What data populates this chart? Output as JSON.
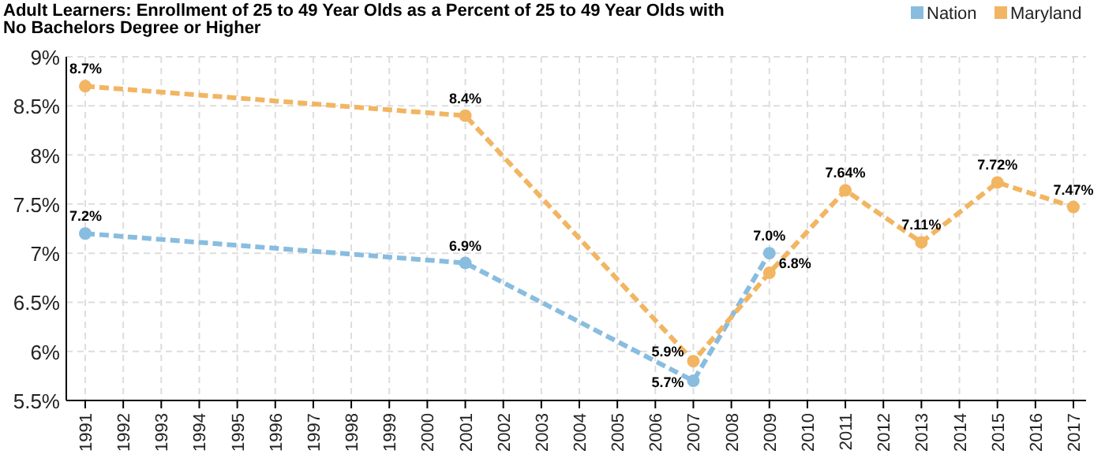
{
  "chart_data": {
    "type": "line",
    "title": "Adult Learners: Enrollment of 25 to 49 Year Olds as a Percent of 25 to 49 Year Olds with\nNo Bachelors Degree or Higher",
    "categories": [
      "1991",
      "1992",
      "1993",
      "1994",
      "1995",
      "1996",
      "1997",
      "1998",
      "1999",
      "2000",
      "2001",
      "2002",
      "2003",
      "2004",
      "2005",
      "2006",
      "2007",
      "2008",
      "2009",
      "2010",
      "2011",
      "2012",
      "2013",
      "2014",
      "2015",
      "2016",
      "2017"
    ],
    "series": [
      {
        "name": "Nation",
        "color": "#88bde0",
        "values": [
          7.2,
          null,
          null,
          null,
          null,
          null,
          null,
          null,
          null,
          null,
          6.9,
          null,
          null,
          null,
          null,
          null,
          5.7,
          null,
          7.0,
          null,
          null,
          null,
          null,
          null,
          null,
          null,
          null
        ],
        "value_labels": [
          "7.2%",
          null,
          null,
          null,
          null,
          null,
          null,
          null,
          null,
          null,
          "6.9%",
          null,
          null,
          null,
          null,
          null,
          "5.7%",
          null,
          "7.0%",
          null,
          null,
          null,
          null,
          null,
          null,
          null,
          null
        ]
      },
      {
        "name": "Maryland",
        "color": "#f2b562",
        "values": [
          8.7,
          null,
          null,
          null,
          null,
          null,
          null,
          null,
          null,
          null,
          8.4,
          null,
          null,
          null,
          null,
          null,
          5.9,
          null,
          6.8,
          null,
          7.64,
          null,
          7.11,
          null,
          7.72,
          null,
          7.47
        ],
        "value_labels": [
          "8.7%",
          null,
          null,
          null,
          null,
          null,
          null,
          null,
          null,
          null,
          "8.4%",
          null,
          null,
          null,
          null,
          null,
          "5.9%",
          null,
          "6.8%",
          null,
          "7.64%",
          null,
          "7.11%",
          null,
          "7.72%",
          null,
          "7.47%"
        ]
      }
    ],
    "ylim": [
      5.5,
      9
    ],
    "yticks": [
      {
        "value": 5.5,
        "label": "5.5%"
      },
      {
        "value": 6,
        "label": "6%"
      },
      {
        "value": 6.5,
        "label": "6.5%"
      },
      {
        "value": 7,
        "label": "7%"
      },
      {
        "value": 7.5,
        "label": "7.5%"
      },
      {
        "value": 8,
        "label": "8%"
      },
      {
        "value": 8.5,
        "label": "8.5%"
      },
      {
        "value": 9,
        "label": "9%"
      }
    ],
    "grid": true,
    "legend": "top right",
    "marker": "circle",
    "line_style": "dashed"
  }
}
